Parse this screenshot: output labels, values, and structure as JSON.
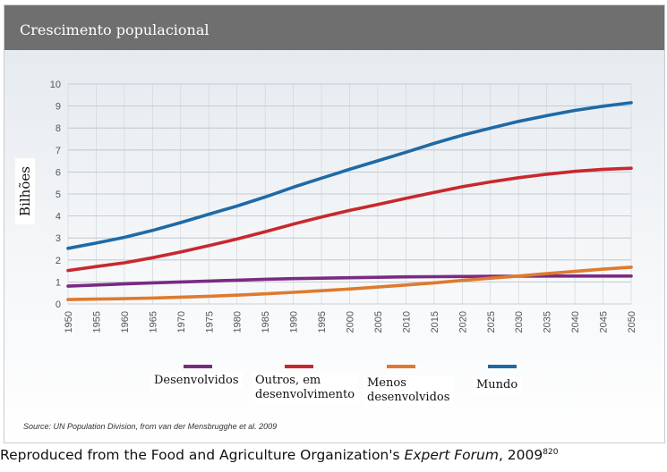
{
  "chart_data": {
    "type": "line",
    "title": "Crescimento populacional",
    "ylabel": "Bilhões",
    "xlabel": "",
    "ylim": [
      0,
      10
    ],
    "yticks": [
      "0",
      "1",
      "2",
      "3",
      "4",
      "5",
      "6",
      "7",
      "8",
      "9",
      "10"
    ],
    "x": [
      1950,
      1955,
      1960,
      1965,
      1970,
      1975,
      1980,
      1985,
      1990,
      1995,
      2000,
      2005,
      2010,
      2015,
      2020,
      2025,
      2030,
      2035,
      2040,
      2045,
      2050
    ],
    "grid": true,
    "legend_position": "bottom",
    "series": [
      {
        "name": "Desenvolvidos",
        "color": "#7b2a84",
        "values": [
          0.81,
          0.86,
          0.91,
          0.96,
          1.0,
          1.04,
          1.08,
          1.12,
          1.15,
          1.17,
          1.19,
          1.21,
          1.23,
          1.24,
          1.25,
          1.26,
          1.26,
          1.27,
          1.27,
          1.27,
          1.27
        ]
      },
      {
        "name": "Outros, em desenvolvimento",
        "color": "#c8282e",
        "values": [
          1.52,
          1.7,
          1.87,
          2.1,
          2.36,
          2.65,
          2.95,
          3.28,
          3.63,
          3.95,
          4.25,
          4.52,
          4.8,
          5.07,
          5.33,
          5.55,
          5.74,
          5.9,
          6.03,
          6.12,
          6.17
        ]
      },
      {
        "name": "Menos desenvolvidos",
        "color": "#df7a2e",
        "values": [
          0.2,
          0.22,
          0.24,
          0.27,
          0.31,
          0.35,
          0.4,
          0.46,
          0.53,
          0.6,
          0.68,
          0.77,
          0.86,
          0.96,
          1.07,
          1.17,
          1.27,
          1.38,
          1.48,
          1.58,
          1.67
        ]
      },
      {
        "name": "Mundo",
        "color": "#1f6aa5",
        "values": [
          2.53,
          2.77,
          3.03,
          3.34,
          3.7,
          4.08,
          4.45,
          4.86,
          5.31,
          5.72,
          6.12,
          6.51,
          6.9,
          7.3,
          7.67,
          7.99,
          8.3,
          8.56,
          8.8,
          8.99,
          9.15
        ]
      }
    ]
  },
  "legend": {
    "desenvolvidos": "Desenvolvidos",
    "outros_line1": "Outros, em",
    "outros_line2": "desenvolvimento",
    "menos_line1": "Menos",
    "menos_line2": "desenvolvidos",
    "mundo": "Mundo"
  },
  "source": "Source: UN Population Division, from van der Mensbrugghe et al. 2009",
  "credit": {
    "prefix": "Reproduced from the Food and Agriculture Organization's ",
    "italic": "Expert Forum",
    "suffix": ", 2009",
    "sup": "820"
  }
}
